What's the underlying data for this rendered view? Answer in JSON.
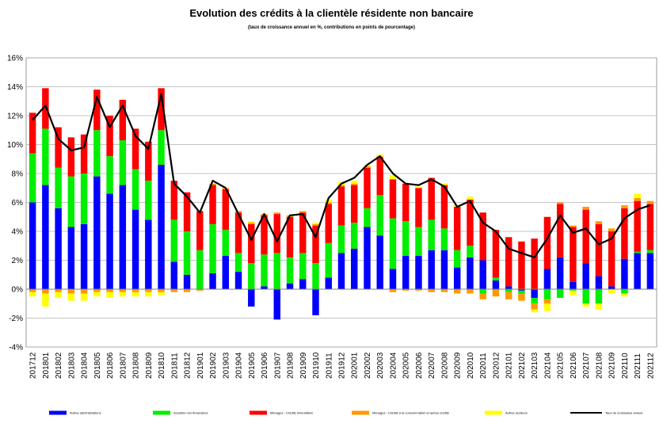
{
  "chart_data": {
    "type": "bar",
    "title": "Evolution des crédits à la clientèle résidente non bancaire",
    "subtitle": "(taux de croissance annuel en %, contributions en points de pourcentage)",
    "ylim": [
      -4,
      16
    ],
    "yticks": [
      "-4%",
      "-2%",
      "0%",
      "2%",
      "4%",
      "6%",
      "8%",
      "10%",
      "12%",
      "14%",
      "16%"
    ],
    "grid": true,
    "legend_position": "bottom",
    "categories": [
      "201712",
      "201801",
      "201802",
      "201803",
      "201804",
      "201805",
      "201806",
      "201807",
      "201808",
      "201809",
      "201810",
      "201811",
      "201812",
      "201901",
      "201902",
      "201903",
      "201904",
      "201905",
      "201906",
      "201907",
      "201908",
      "201909",
      "201910",
      "201911",
      "201912",
      "202001",
      "202002",
      "202003",
      "202004",
      "202005",
      "202006",
      "202007",
      "202008",
      "202009",
      "202010",
      "202011",
      "202012",
      "202101",
      "202102",
      "202103",
      "202104",
      "202105",
      "202106",
      "202107",
      "202108",
      "202109",
      "202110",
      "202111",
      "202112"
    ],
    "series": [
      {
        "name": "Autres administrations",
        "color": "#0000ff",
        "type": "bar",
        "values": [
          6.0,
          7.2,
          5.6,
          4.3,
          4.5,
          7.8,
          6.6,
          7.2,
          5.5,
          4.8,
          8.6,
          1.9,
          1.0,
          0.0,
          1.1,
          2.3,
          1.2,
          -1.2,
          0.2,
          -2.1,
          0.4,
          0.7,
          -1.8,
          0.8,
          2.5,
          2.8,
          4.3,
          3.7,
          1.4,
          2.3,
          2.3,
          2.7,
          2.7,
          1.5,
          2.2,
          2.0,
          0.6,
          0.2,
          -0.1,
          -0.6,
          1.4,
          2.2,
          0.5,
          1.8,
          0.9,
          0.2,
          2.1,
          2.5,
          2.5
        ]
      },
      {
        "name": "Sociétés non financières",
        "color": "#00ee00",
        "type": "bar",
        "values": [
          3.4,
          3.9,
          2.8,
          3.5,
          3.5,
          3.2,
          2.6,
          3.1,
          2.8,
          2.7,
          2.4,
          2.9,
          3.0,
          2.7,
          3.4,
          1.8,
          1.3,
          1.8,
          2.2,
          2.5,
          1.8,
          1.8,
          1.8,
          2.4,
          1.9,
          1.8,
          1.3,
          2.8,
          3.5,
          2.4,
          2.0,
          2.1,
          1.5,
          1.2,
          0.8,
          -0.3,
          0.2,
          -0.2,
          -0.2,
          -0.4,
          -0.7,
          -0.6,
          -0.1,
          -1.0,
          -1.0,
          0.0,
          -0.3,
          0.1,
          0.2
        ]
      },
      {
        "name": "Ménages - Crédits immobiliers",
        "color": "#ff0000",
        "type": "bar",
        "values": [
          2.8,
          2.8,
          2.8,
          2.7,
          2.7,
          2.8,
          2.8,
          2.8,
          2.8,
          2.7,
          2.9,
          2.7,
          2.7,
          2.7,
          2.7,
          2.8,
          2.8,
          2.7,
          2.7,
          2.7,
          2.8,
          2.8,
          2.6,
          2.7,
          2.7,
          2.6,
          2.8,
          2.6,
          2.7,
          2.6,
          2.7,
          2.9,
          3.0,
          3.0,
          3.2,
          3.3,
          3.3,
          3.4,
          3.3,
          3.5,
          3.6,
          3.7,
          3.8,
          3.7,
          3.6,
          3.8,
          3.5,
          3.5,
          3.2
        ]
      },
      {
        "name": "Ménages - Crédits à la consommation et autres crédits",
        "color": "#ff9900",
        "type": "bar",
        "values": [
          -0.2,
          -0.3,
          -0.2,
          -0.3,
          -0.3,
          -0.2,
          -0.2,
          -0.2,
          -0.2,
          -0.2,
          -0.2,
          -0.2,
          -0.2,
          -0.1,
          0.1,
          0.1,
          0.1,
          0.1,
          0.1,
          0.1,
          0.1,
          0.1,
          0.1,
          0.1,
          0.1,
          0.1,
          0.1,
          0.1,
          -0.2,
          -0.1,
          -0.1,
          -0.2,
          -0.2,
          -0.3,
          -0.3,
          -0.4,
          -0.5,
          -0.5,
          -0.5,
          -0.4,
          -0.3,
          0.1,
          0.1,
          0.2,
          0.2,
          0.2,
          0.2,
          0.2,
          0.2
        ]
      },
      {
        "name": "Autres secteurs",
        "color": "#ffff00",
        "type": "bar",
        "values": [
          -0.3,
          -0.9,
          -0.4,
          -0.5,
          -0.5,
          -0.3,
          -0.4,
          -0.3,
          -0.3,
          -0.3,
          -0.2,
          0.0,
          0.0,
          0.0,
          0.0,
          0.0,
          0.0,
          0.1,
          0.0,
          0.0,
          0.0,
          0.0,
          0.1,
          0.2,
          0.2,
          0.2,
          0.1,
          0.1,
          0.3,
          0.0,
          0.1,
          0.0,
          0.1,
          0.1,
          0.2,
          0.0,
          0.0,
          0.0,
          0.0,
          -0.2,
          -0.5,
          0.0,
          -0.3,
          -0.2,
          -0.4,
          -0.3,
          -0.2,
          0.3,
          0.0
        ]
      },
      {
        "name": "Taux de croissance annuel",
        "color": "#000000",
        "type": "line",
        "values": [
          11.7,
          12.7,
          10.4,
          9.6,
          9.8,
          13.3,
          11.2,
          12.7,
          10.6,
          9.7,
          13.5,
          7.3,
          6.4,
          5.3,
          7.5,
          7.0,
          5.2,
          3.4,
          5.2,
          3.3,
          5.1,
          5.2,
          3.6,
          6.3,
          7.3,
          7.7,
          8.6,
          9.2,
          8.0,
          7.3,
          7.2,
          7.6,
          7.1,
          5.7,
          6.1,
          4.6,
          4.0,
          2.8,
          2.5,
          2.2,
          3.5,
          5.1,
          3.9,
          4.2,
          3.1,
          3.5,
          4.9,
          5.5,
          5.8
        ]
      }
    ]
  }
}
